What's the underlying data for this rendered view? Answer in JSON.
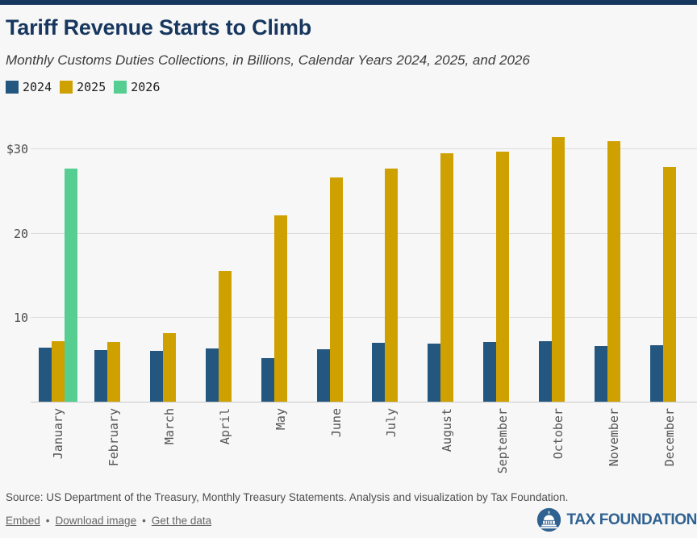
{
  "header": {
    "title": "Tariff Revenue Starts to Climb",
    "subtitle": "Monthly Customs Duties Collections, in Billions, Calendar Years 2024, 2025, and 2026"
  },
  "chart_data": {
    "type": "bar",
    "categories": [
      "January",
      "February",
      "March",
      "April",
      "May",
      "June",
      "July",
      "August",
      "September",
      "October",
      "November",
      "December"
    ],
    "series": [
      {
        "name": "2024",
        "color": "#245780",
        "values": [
          6.5,
          6.2,
          6.1,
          6.4,
          5.3,
          6.3,
          7.1,
          7.0,
          7.2,
          7.3,
          6.7,
          6.8
        ]
      },
      {
        "name": "2025",
        "color": "#cfa100",
        "values": [
          7.3,
          7.2,
          8.2,
          15.6,
          22.2,
          26.6,
          27.7,
          29.5,
          29.7,
          31.4,
          30.9,
          27.9
        ]
      },
      {
        "name": "2026",
        "color": "#56ce92",
        "values": [
          27.7,
          null,
          null,
          null,
          null,
          null,
          null,
          null,
          null,
          null,
          null,
          null
        ]
      }
    ],
    "y_ticks": [
      {
        "value": 10,
        "label": "10"
      },
      {
        "value": 20,
        "label": "20"
      },
      {
        "value": 30,
        "label": "$30"
      }
    ],
    "ylim": [
      0,
      33.9
    ],
    "grid": true,
    "legend_position": "top-left",
    "title": "Tariff Revenue Starts to Climb",
    "xlabel": "",
    "ylabel": ""
  },
  "footer": {
    "source": "Source: US Department of the Treasury, Monthly Treasury Statements. Analysis and visualization by Tax Foundation.",
    "links": [
      "Embed",
      "Download image",
      "Get the data"
    ],
    "separator": "•",
    "brand": "TAX FOUNDATION"
  },
  "colors": {
    "accent_navy": "#17375e",
    "bar_2024": "#245780",
    "bar_2025": "#cfa100",
    "bar_2026": "#56ce92",
    "background": "#f7f7f7",
    "gridline": "#dddddd",
    "logo_blue": "#2f6191"
  }
}
